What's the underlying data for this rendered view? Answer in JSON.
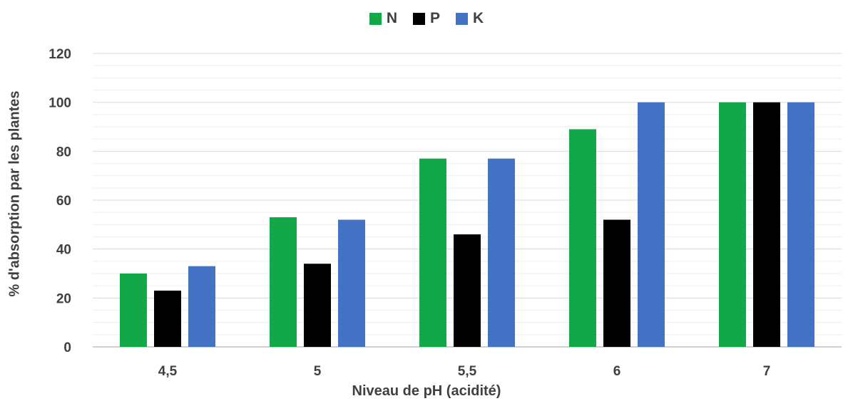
{
  "chart_data": {
    "type": "bar",
    "categories": [
      "4,5",
      "5",
      "5,5",
      "6",
      "7"
    ],
    "series": [
      {
        "name": "N",
        "color": "#12a84a",
        "values": [
          30,
          53,
          77,
          89,
          100
        ]
      },
      {
        "name": "P",
        "color": "#000000",
        "values": [
          23,
          34,
          46,
          52,
          100
        ]
      },
      {
        "name": "K",
        "color": "#4472c4",
        "values": [
          33,
          52,
          77,
          100,
          100
        ]
      }
    ],
    "xlabel": "Niveau de pH (acidité)",
    "ylabel": "% d'absorption par les plantes",
    "ylim": [
      0,
      120
    ],
    "yticks": [
      0,
      20,
      40,
      60,
      80,
      100,
      120
    ],
    "grid": true,
    "legend": "top-center"
  }
}
